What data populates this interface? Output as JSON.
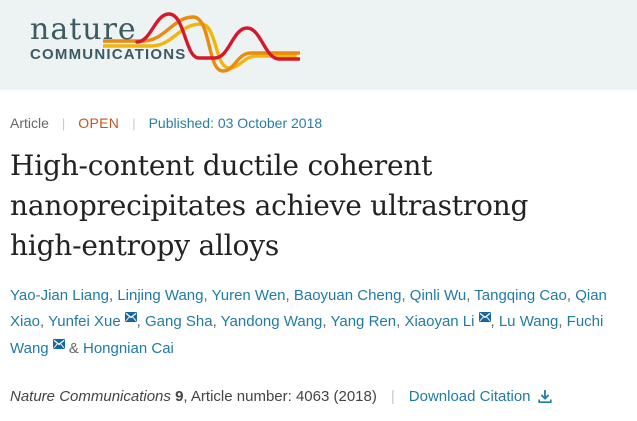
{
  "header": {
    "logo_line1": "nature",
    "logo_line2": "COMMUNICATIONS",
    "logo_color": "#3d5a63",
    "background": "#edf2f2",
    "wave_colors": {
      "red": "#d31a2c",
      "orange": "#e98b0e",
      "yellow": "#f2b50c"
    }
  },
  "meta": {
    "article_type": "Article",
    "separator": "|",
    "open_label": "OPEN",
    "published": "Published: 03 October 2018"
  },
  "title": "High-content ductile coherent nanoprecipitates achieve ultrastrong high-entropy alloys",
  "authors": {
    "comma_separator": ", ",
    "last_separator": " & ",
    "list": [
      {
        "name": "Yao-Jian Liang",
        "has_email_icon": false
      },
      {
        "name": "Linjing Wang",
        "has_email_icon": false
      },
      {
        "name": "Yuren Wen",
        "has_email_icon": false
      },
      {
        "name": "Baoyuan Cheng",
        "has_email_icon": false
      },
      {
        "name": "Qinli Wu",
        "has_email_icon": false
      },
      {
        "name": "Tangqing Cao",
        "has_email_icon": false
      },
      {
        "name": "Qian Xiao",
        "has_email_icon": false
      },
      {
        "name": "Yunfei Xue",
        "has_email_icon": true
      },
      {
        "name": "Gang Sha",
        "has_email_icon": false
      },
      {
        "name": "Yandong Wang",
        "has_email_icon": false
      },
      {
        "name": "Yang Ren",
        "has_email_icon": false
      },
      {
        "name": "Xiaoyan Li",
        "has_email_icon": true
      },
      {
        "name": "Lu Wang",
        "has_email_icon": false
      },
      {
        "name": "Fuchi Wang",
        "has_email_icon": true
      },
      {
        "name": "Hongnian Cai",
        "has_email_icon": false
      }
    ]
  },
  "citation": {
    "journal": "Nature Communications",
    "volume": "9",
    "article_info": ", Article number: 4063 (2018)",
    "separator": "|",
    "download_label": "Download Citation"
  },
  "colors": {
    "link_teal": "#1f7ca1",
    "published_teal": "#2a7da0",
    "open_orange": "#c6541e",
    "meta_gray": "#666666",
    "separator_gray": "#c8c8c8",
    "title_color": "#222222",
    "email_icon_bg": "#15679e"
  }
}
